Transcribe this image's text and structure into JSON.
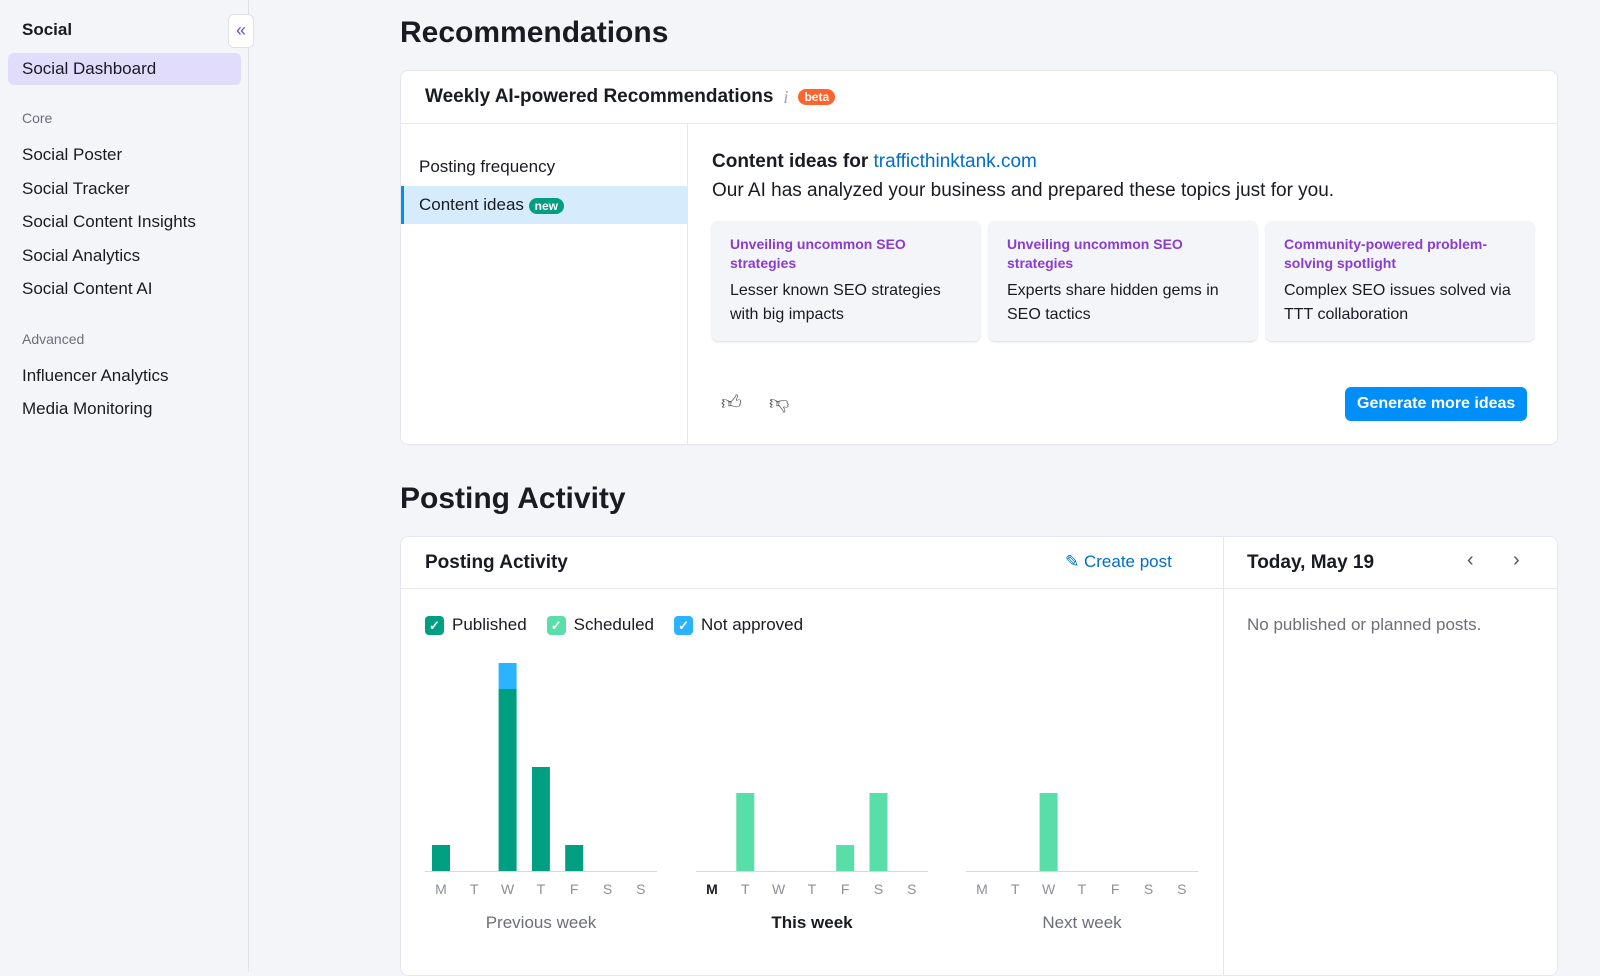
{
  "sidebar": {
    "title": "Social",
    "collapse_icon": "double-chevron-left",
    "active": "Social Dashboard",
    "sections": [
      {
        "label": "Core",
        "items": [
          "Social Poster",
          "Social Tracker",
          "Social Content Insights",
          "Social Analytics",
          "Social Content AI"
        ]
      },
      {
        "label": "Advanced",
        "items": [
          "Influencer Analytics",
          "Media Monitoring"
        ]
      }
    ]
  },
  "recommendations": {
    "heading": "Recommendations",
    "card_title": "Weekly AI-powered Recommendations",
    "info_icon": "i",
    "beta": "beta",
    "tabs": [
      {
        "label": "Posting frequency"
      },
      {
        "label": "Content ideas",
        "badge": "new",
        "active": true
      }
    ],
    "content_title": "Content ideas for",
    "domain": "trafficthinktank.com",
    "subtitle": "Our AI has analyzed your business and prepared these topics just for you.",
    "ideas": [
      {
        "title": "Unveiling uncommon SEO strategies",
        "desc": "Lesser known SEO strategies with big impacts"
      },
      {
        "title": "Unveiling uncommon SEO strategies",
        "desc": "Experts share hidden gems in SEO tactics"
      },
      {
        "title": "Community-powered problem-solving spotlight",
        "desc": "Complex SEO issues solved via TTT collaboration"
      }
    ],
    "generate_button": "Generate more ideas"
  },
  "activity": {
    "heading": "Posting Activity",
    "card_title": "Posting Activity",
    "create_post": "Create post",
    "legend": [
      {
        "label": "Published",
        "color": "#009f81"
      },
      {
        "label": "Scheduled",
        "color": "#59dda9"
      },
      {
        "label": "Not approved",
        "color": "#2bb3ff"
      }
    ],
    "today": "Today, May 19",
    "empty": "No published or planned posts."
  },
  "chart_data": {
    "type": "bar",
    "stacked": true,
    "days": [
      "M",
      "T",
      "W",
      "T",
      "F",
      "S",
      "S"
    ],
    "weeks": [
      {
        "label": "Previous week",
        "published": [
          1,
          0,
          7,
          4,
          1,
          0,
          0
        ],
        "scheduled": [
          0,
          0,
          0,
          0,
          0,
          0,
          0
        ],
        "not_approved": [
          0,
          0,
          1,
          0,
          0,
          0,
          0
        ]
      },
      {
        "label": "This week",
        "current": true,
        "today_index": 0,
        "published": [
          0,
          0,
          0,
          0,
          0,
          0,
          0
        ],
        "scheduled": [
          0,
          3,
          0,
          0,
          1,
          3,
          0
        ],
        "not_approved": [
          0,
          0,
          0,
          0,
          0,
          0,
          0
        ]
      },
      {
        "label": "Next week",
        "published": [
          0,
          0,
          0,
          0,
          0,
          0,
          0
        ],
        "scheduled": [
          0,
          0,
          3,
          0,
          0,
          0,
          0
        ],
        "not_approved": [
          0,
          0,
          0,
          0,
          0,
          0,
          0
        ]
      }
    ]
  }
}
